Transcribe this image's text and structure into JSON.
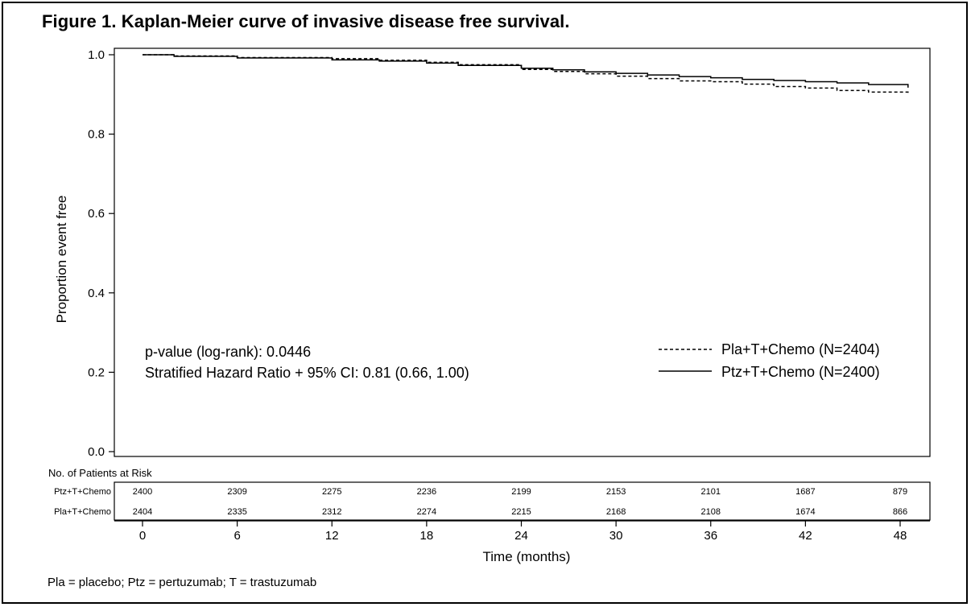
{
  "figure": {
    "title": "Figure 1. Kaplan-Meier curve of invasive disease free survival.",
    "footnote": "Pla = placebo; Ptz = pertuzumab; T = trastuzumab"
  },
  "chart_data": {
    "type": "line",
    "title": "Figure 1. Kaplan-Meier curve of invasive disease free survival.",
    "xlabel": "Time (months)",
    "ylabel": "Proportion event free",
    "xlim": [
      0,
      48
    ],
    "ylim": [
      0,
      1.0
    ],
    "x_ticks": [
      0,
      6,
      12,
      18,
      24,
      30,
      36,
      42,
      48
    ],
    "y_ticks": [
      "0.0",
      "0.2",
      "0.4",
      "0.6",
      "0.8",
      "1.0"
    ],
    "grid": false,
    "legend_position": "right",
    "series": [
      {
        "name": "Pla+T+Chemo (N=2404)",
        "style": "dashed",
        "x": [
          0,
          2,
          6,
          12,
          15,
          18,
          20,
          24,
          26,
          28,
          30,
          32,
          34,
          36,
          38,
          40,
          42,
          44,
          46,
          48.5
        ],
        "y": [
          1.0,
          0.997,
          0.993,
          0.99,
          0.986,
          0.981,
          0.975,
          0.963,
          0.958,
          0.952,
          0.946,
          0.94,
          0.934,
          0.932,
          0.926,
          0.92,
          0.916,
          0.91,
          0.906,
          0.901
        ]
      },
      {
        "name": "Ptz+T+Chemo (N=2400)",
        "style": "solid",
        "x": [
          0,
          2,
          6,
          12,
          15,
          18,
          20,
          24,
          26,
          28,
          30,
          32,
          34,
          36,
          38,
          40,
          42,
          44,
          46,
          48.5
        ],
        "y": [
          1.0,
          0.996,
          0.992,
          0.987,
          0.984,
          0.979,
          0.973,
          0.966,
          0.962,
          0.957,
          0.953,
          0.949,
          0.945,
          0.942,
          0.938,
          0.935,
          0.932,
          0.929,
          0.925,
          0.917
        ]
      }
    ],
    "annotations": [
      "p-value (log-rank): 0.0446",
      "Stratified Hazard Ratio + 95% CI: 0.81 (0.66, 1.00)"
    ],
    "risk_table": {
      "header": "No. of Patients at Risk",
      "times": [
        0,
        6,
        12,
        18,
        24,
        30,
        36,
        42,
        48
      ],
      "rows": [
        {
          "label": "Ptz+T+Chemo",
          "values": [
            2400,
            2309,
            2275,
            2236,
            2199,
            2153,
            2101,
            1687,
            879
          ]
        },
        {
          "label": "Pla+T+Chemo",
          "values": [
            2404,
            2335,
            2312,
            2274,
            2215,
            2168,
            2108,
            1674,
            866
          ]
        }
      ]
    }
  }
}
